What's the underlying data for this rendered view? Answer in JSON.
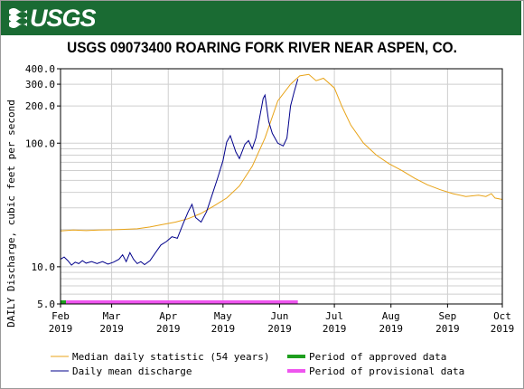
{
  "header": {
    "agency": "USGS",
    "title": "USGS 09073400 ROARING FORK RIVER NEAR ASPEN, CO."
  },
  "colors": {
    "banner": "#1a6b33",
    "median": "#e8a317",
    "daily": "#00008b",
    "approved": "#1e9e1e",
    "provisional": "#ee55ee"
  },
  "chart_data": {
    "type": "line",
    "ylabel": "DAILY Discharge, cubic feet per second",
    "yscale": "log",
    "ylim": [
      5,
      400
    ],
    "y_ticks": [
      "400.0",
      "300.0",
      "200.0",
      "100.0",
      "10.0",
      "5.0"
    ],
    "x_ticks": [
      {
        "month": "Feb",
        "year": "2019"
      },
      {
        "month": "Mar",
        "year": "2019"
      },
      {
        "month": "Apr",
        "year": "2019"
      },
      {
        "month": "May",
        "year": "2019"
      },
      {
        "month": "Jun",
        "year": "2019"
      },
      {
        "month": "Jul",
        "year": "2019"
      },
      {
        "month": "Aug",
        "year": "2019"
      },
      {
        "month": "Sep",
        "year": "2019"
      },
      {
        "month": "Oct",
        "year": "2019"
      }
    ],
    "xlim": [
      "2019-02-01",
      "2019-10-01"
    ],
    "series": [
      {
        "name": "Median daily statistic (54 years)",
        "color": "#e8a317",
        "points": [
          [
            "2019-02-01",
            19.5
          ],
          [
            "2019-02-08",
            19.8
          ],
          [
            "2019-02-15",
            19.6
          ],
          [
            "2019-02-22",
            19.8
          ],
          [
            "2019-03-01",
            19.9
          ],
          [
            "2019-03-08",
            20.1
          ],
          [
            "2019-03-15",
            20.3
          ],
          [
            "2019-03-22",
            21.0
          ],
          [
            "2019-03-29",
            22.0
          ],
          [
            "2019-04-05",
            23.0
          ],
          [
            "2019-04-12",
            24.5
          ],
          [
            "2019-04-19",
            27.0
          ],
          [
            "2019-04-26",
            31.0
          ],
          [
            "2019-05-03",
            36.0
          ],
          [
            "2019-05-10",
            45.0
          ],
          [
            "2019-05-17",
            65.0
          ],
          [
            "2019-05-24",
            110.0
          ],
          [
            "2019-05-31",
            220.0
          ],
          [
            "2019-06-07",
            300.0
          ],
          [
            "2019-06-12",
            350.0
          ],
          [
            "2019-06-17",
            360.0
          ],
          [
            "2019-06-21",
            320.0
          ],
          [
            "2019-06-25",
            335.0
          ],
          [
            "2019-07-01",
            280.0
          ],
          [
            "2019-07-05",
            200.0
          ],
          [
            "2019-07-10",
            140.0
          ],
          [
            "2019-07-17",
            100.0
          ],
          [
            "2019-07-24",
            80.0
          ],
          [
            "2019-07-31",
            68.0
          ],
          [
            "2019-08-07",
            60.0
          ],
          [
            "2019-08-14",
            52.0
          ],
          [
            "2019-08-21",
            46.0
          ],
          [
            "2019-08-28",
            42.0
          ],
          [
            "2019-09-04",
            39.0
          ],
          [
            "2019-09-11",
            37.0
          ],
          [
            "2019-09-18",
            38.0
          ],
          [
            "2019-09-22",
            37.0
          ],
          [
            "2019-09-25",
            39.0
          ],
          [
            "2019-09-27",
            36.0
          ],
          [
            "2019-10-01",
            35.0
          ]
        ]
      },
      {
        "name": "Daily mean discharge",
        "color": "#00008b",
        "points": [
          [
            "2019-02-01",
            11.5
          ],
          [
            "2019-02-03",
            12.0
          ],
          [
            "2019-02-05",
            11.2
          ],
          [
            "2019-02-07",
            10.3
          ],
          [
            "2019-02-09",
            10.9
          ],
          [
            "2019-02-11",
            10.6
          ],
          [
            "2019-02-13",
            11.2
          ],
          [
            "2019-02-15",
            10.7
          ],
          [
            "2019-02-18",
            11.0
          ],
          [
            "2019-02-21",
            10.6
          ],
          [
            "2019-02-24",
            11.0
          ],
          [
            "2019-02-27",
            10.5
          ],
          [
            "2019-03-02",
            10.9
          ],
          [
            "2019-03-05",
            11.5
          ],
          [
            "2019-03-07",
            12.5
          ],
          [
            "2019-03-09",
            11.0
          ],
          [
            "2019-03-11",
            13.0
          ],
          [
            "2019-03-13",
            11.5
          ],
          [
            "2019-03-15",
            10.6
          ],
          [
            "2019-03-17",
            11.0
          ],
          [
            "2019-03-19",
            10.4
          ],
          [
            "2019-03-22",
            11.2
          ],
          [
            "2019-03-25",
            13.0
          ],
          [
            "2019-03-28",
            15.0
          ],
          [
            "2019-03-31",
            16.0
          ],
          [
            "2019-04-03",
            17.5
          ],
          [
            "2019-04-06",
            17.0
          ],
          [
            "2019-04-09",
            22.0
          ],
          [
            "2019-04-12",
            28.0
          ],
          [
            "2019-04-14",
            32.0
          ],
          [
            "2019-04-16",
            25.0
          ],
          [
            "2019-04-19",
            23.0
          ],
          [
            "2019-04-22",
            28.0
          ],
          [
            "2019-04-25",
            38.0
          ],
          [
            "2019-04-28",
            52.0
          ],
          [
            "2019-05-01",
            72.0
          ],
          [
            "2019-05-03",
            102.0
          ],
          [
            "2019-05-05",
            115.0
          ],
          [
            "2019-05-08",
            85.0
          ],
          [
            "2019-05-10",
            75.0
          ],
          [
            "2019-05-13",
            98.0
          ],
          [
            "2019-05-15",
            105.0
          ],
          [
            "2019-05-17",
            90.0
          ],
          [
            "2019-05-19",
            110.0
          ],
          [
            "2019-05-21",
            160.0
          ],
          [
            "2019-05-23",
            230.0
          ],
          [
            "2019-05-24",
            245.0
          ],
          [
            "2019-05-26",
            150.0
          ],
          [
            "2019-05-28",
            120.0
          ],
          [
            "2019-05-31",
            100.0
          ],
          [
            "2019-06-03",
            95.0
          ],
          [
            "2019-06-05",
            110.0
          ],
          [
            "2019-06-07",
            200.0
          ],
          [
            "2019-06-09",
            260.0
          ],
          [
            "2019-06-11",
            330.0
          ]
        ]
      }
    ],
    "periods": [
      {
        "name": "Period of approved data",
        "color": "#1e9e1e",
        "from": "2019-02-01",
        "to": "2019-02-04"
      },
      {
        "name": "Period of provisional data",
        "color": "#ee55ee",
        "from": "2019-02-04",
        "to": "2019-06-11"
      }
    ],
    "legend": [
      {
        "label": "Median daily statistic (54 years)",
        "color": "#e8a317",
        "style": "thin"
      },
      {
        "label": "Daily mean discharge",
        "color": "#00008b",
        "style": "thin"
      },
      {
        "label": "Period of approved data",
        "color": "#1e9e1e",
        "style": "thick"
      },
      {
        "label": "Period of provisional data",
        "color": "#ee55ee",
        "style": "thick"
      }
    ],
    "grid": true,
    "legend_position": "bottom"
  }
}
